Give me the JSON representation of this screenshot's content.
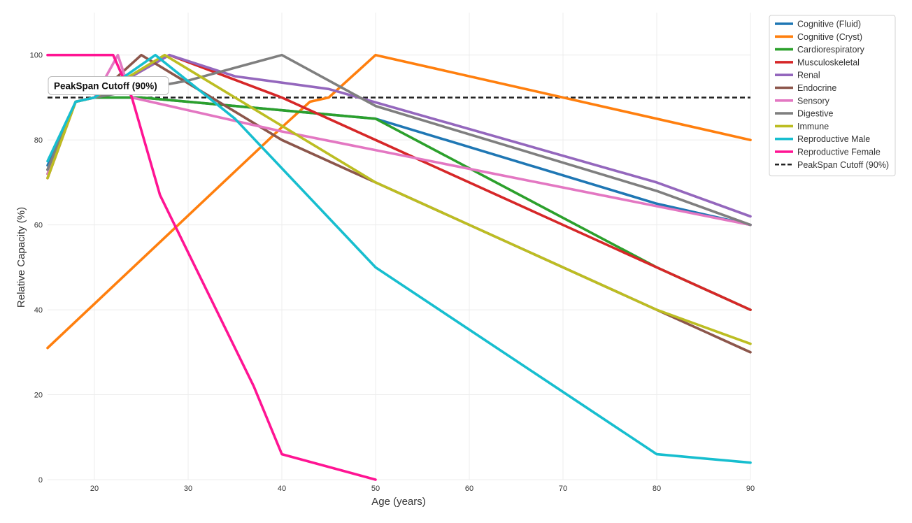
{
  "chart_data": {
    "type": "line",
    "title": "",
    "xlabel": "Age (years)",
    "ylabel": "Relative Capacity (%)",
    "xlim": [
      15,
      90
    ],
    "ylim": [
      0,
      110
    ],
    "xticks": [
      20,
      30,
      40,
      50,
      60,
      70,
      80,
      90
    ],
    "yticks": [
      0,
      20,
      40,
      60,
      80,
      100
    ],
    "grid": true,
    "legend_position": "upper-right-outside",
    "series": [
      {
        "name": "Cognitive (Fluid)",
        "color": "#1f77b4",
        "x": [
          15,
          18,
          20,
          25,
          50,
          80,
          90
        ],
        "y": [
          74,
          89,
          90,
          90,
          85,
          65,
          60
        ]
      },
      {
        "name": "Cognitive (Cryst)",
        "color": "#ff7f0e",
        "x": [
          15,
          40,
          43,
          45,
          50,
          90
        ],
        "y": [
          31,
          83,
          89,
          90,
          100,
          80
        ]
      },
      {
        "name": "Cardiorespiratory",
        "color": "#2ca02c",
        "x": [
          15,
          18,
          20,
          25,
          50,
          80,
          90
        ],
        "y": [
          72,
          89,
          90,
          90,
          85,
          50,
          40
        ]
      },
      {
        "name": "Musculoskeletal",
        "color": "#d62728",
        "x": [
          15,
          18,
          20,
          28,
          40,
          50,
          80,
          90
        ],
        "y": [
          71,
          89,
          90,
          100,
          90,
          80,
          50,
          40
        ]
      },
      {
        "name": "Renal",
        "color": "#9467bd",
        "x": [
          15,
          18,
          20,
          28,
          35,
          45,
          80,
          90
        ],
        "y": [
          73,
          89,
          90,
          100,
          95,
          92,
          70,
          62
        ]
      },
      {
        "name": "Endocrine",
        "color": "#8c564b",
        "x": [
          15,
          18,
          20,
          25,
          40,
          50,
          80,
          90
        ],
        "y": [
          73,
          89,
          90,
          100,
          80,
          70,
          40,
          30
        ]
      },
      {
        "name": "Sensory",
        "color": "#e377c2",
        "x": [
          15,
          18,
          20,
          22.5,
          24,
          40,
          90
        ],
        "y": [
          72,
          89,
          90,
          100,
          90,
          82,
          60
        ]
      },
      {
        "name": "Digestive",
        "color": "#7f7f7f",
        "x": [
          15,
          18,
          20,
          30,
          40,
          50,
          80,
          90
        ],
        "y": [
          73,
          89,
          90,
          94,
          100,
          88,
          68,
          60
        ]
      },
      {
        "name": "Immune",
        "color": "#bcbd22",
        "x": [
          15,
          18,
          20,
          27.5,
          35,
          50,
          80,
          90
        ],
        "y": [
          71,
          89,
          90,
          100,
          90,
          70,
          40,
          32
        ]
      },
      {
        "name": "Reproductive Male",
        "color": "#17becf",
        "x": [
          15,
          18,
          20,
          26.5,
          35,
          50,
          80,
          90
        ],
        "y": [
          75,
          89,
          90,
          100,
          85,
          50,
          6,
          4
        ]
      },
      {
        "name": "Reproductive Female",
        "color": "#ff1493",
        "x": [
          15,
          22,
          24,
          27,
          37,
          40,
          50
        ],
        "y": [
          100,
          100,
          90,
          67,
          22,
          6,
          0
        ]
      }
    ],
    "reference_lines": [
      {
        "name": "PeakSpan Cutoff (90%)",
        "y": 90,
        "color": "#222222",
        "style": "dashed"
      }
    ],
    "annotations": [
      {
        "text": "PeakSpan Cutoff (90%)",
        "x": 15,
        "y": 90,
        "anchor": "upper-left"
      }
    ]
  }
}
